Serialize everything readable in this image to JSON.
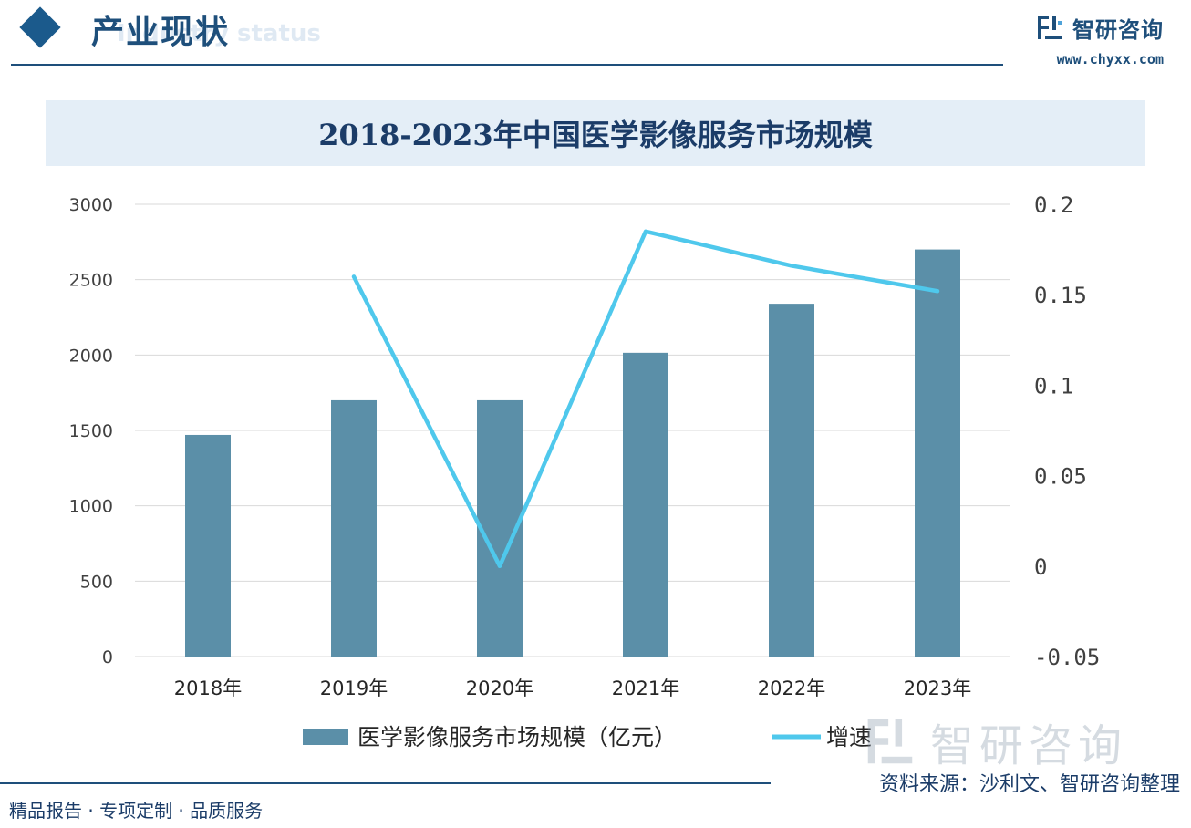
{
  "header": {
    "section_title": "产业现状",
    "section_subtitle": "Industry status",
    "brand_name": "智研咨询",
    "brand_url": "www.chyxx.com"
  },
  "chart_title": "2018-2023年中国医学影像服务市场规模",
  "chart_data": {
    "type": "bar",
    "title": "2018-2023年中国医学影像服务市场规模",
    "categories": [
      "2018年",
      "2019年",
      "2020年",
      "2021年",
      "2022年",
      "2023年"
    ],
    "series": [
      {
        "name": "医学影像服务市场规模（亿元）",
        "type": "bar",
        "axis": "left",
        "values": [
          1470,
          1700,
          1700,
          2015,
          2340,
          2700
        ]
      },
      {
        "name": "增速",
        "type": "line",
        "axis": "right",
        "values": [
          null,
          0.16,
          0.0,
          0.185,
          0.166,
          0.152
        ]
      }
    ],
    "y_left": {
      "min": 0,
      "max": 3000,
      "ticks": [
        "0",
        "500",
        "1000",
        "1500",
        "2000",
        "2500",
        "3000"
      ]
    },
    "y_right": {
      "min": -0.05,
      "max": 0.2,
      "ticks": [
        "-0.05",
        "0",
        "0.05",
        "0.1",
        "0.15",
        "0.2"
      ]
    },
    "colors": {
      "bar": "#5b8fa8",
      "line": "#4fc8ec",
      "grid": "#d9d9d9"
    },
    "grid": true,
    "legend": "bottom"
  },
  "footer": {
    "tagline": "精品报告 · 专项定制 · 品质服务",
    "source": "资料来源：沙利文、智研咨询整理",
    "watermark": "智研咨询"
  }
}
